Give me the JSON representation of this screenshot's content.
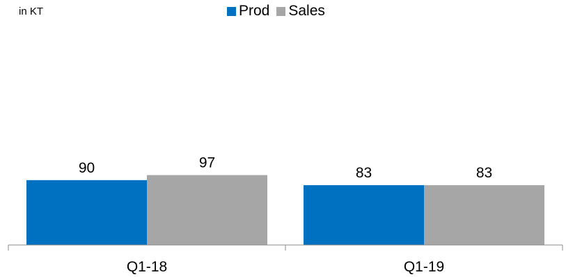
{
  "unit_label": "in KT",
  "colors": {
    "prod": "#0070C0",
    "sales": "#A6A6A6",
    "axis": "#888888",
    "text": "#000000"
  },
  "chart_data": {
    "type": "bar",
    "title": "",
    "xlabel": "",
    "ylabel": "in KT",
    "categories": [
      "Q1-18",
      "Q1-19"
    ],
    "series": [
      {
        "name": "Prod",
        "values": [
          90,
          83
        ],
        "color": "#0070C0"
      },
      {
        "name": "Sales",
        "values": [
          97,
          83
        ],
        "color": "#A6A6A6"
      }
    ],
    "ylim": [
      0,
      340
    ],
    "grid": false,
    "legend": "top-center",
    "data_labels": true
  }
}
